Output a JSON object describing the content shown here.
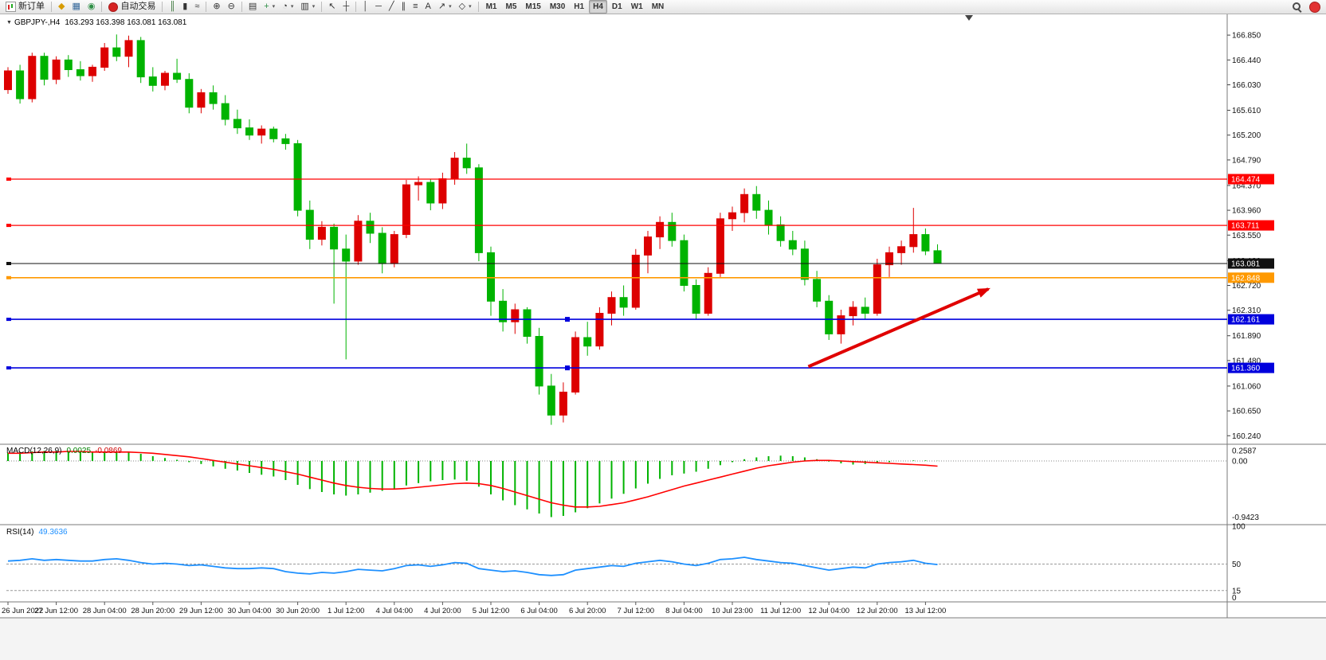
{
  "toolbar": {
    "items": [
      {
        "name": "new-order-button",
        "label": "新订单",
        "css_icon": "icon-neworder"
      },
      {
        "type": "sep"
      },
      {
        "name": "market-watch-button",
        "glyph": "◆",
        "color": "#d79b00"
      },
      {
        "name": "data-window-button",
        "glyph": "▦",
        "color": "#34679a"
      },
      {
        "name": "terminal-button",
        "glyph": "◉",
        "color": "#2f8f46"
      },
      {
        "type": "sep"
      },
      {
        "name": "auto-trading-button",
        "label": "自动交易",
        "css_icon": "icon-autotrade"
      },
      {
        "type": "sep"
      },
      {
        "name": "bar-chart-button",
        "glyph": "║",
        "color": "#2f6f2f"
      },
      {
        "name": "candlestick-chart-button",
        "glyph": "▮",
        "color": "#333333"
      },
      {
        "name": "line-chart-button",
        "glyph": "≈",
        "color": "#333333"
      },
      {
        "type": "sep"
      },
      {
        "name": "zoom-in-button",
        "glyph": "⊕",
        "color": "#333333"
      },
      {
        "name": "zoom-out-button",
        "glyph": "⊖",
        "color": "#333333"
      },
      {
        "type": "sep"
      },
      {
        "name": "tile-windows-button",
        "glyph": "▤",
        "color": "#333333"
      },
      {
        "name": "indicators-button",
        "glyph": "+",
        "color": "#2f8f46",
        "dropdown": true
      },
      {
        "name": "periods-button",
        "glyph": "◔",
        "color": "#333333",
        "dropdown": true
      },
      {
        "name": "templates-button",
        "glyph": "▥",
        "color": "#333333",
        "dropdown": true
      },
      {
        "type": "sep"
      },
      {
        "name": "cursor-button",
        "glyph": "↖",
        "color": "#333333"
      },
      {
        "name": "crosshair-button",
        "glyph": "┼",
        "color": "#333333"
      },
      {
        "type": "sep"
      },
      {
        "name": "vertical-line-button",
        "glyph": "│",
        "color": "#333333"
      },
      {
        "name": "horizontal-line-button",
        "glyph": "─",
        "color": "#333333"
      },
      {
        "name": "trendline-button",
        "glyph": "╱",
        "color": "#333333"
      },
      {
        "name": "channel-button",
        "glyph": "∥",
        "color": "#333333"
      },
      {
        "name": "fibonacci-button",
        "glyph": "≡",
        "color": "#333333"
      },
      {
        "name": "text-button",
        "glyph": "A",
        "color": "#333333"
      },
      {
        "name": "arrows-button",
        "glyph": "↗",
        "color": "#333333",
        "dropdown": true
      },
      {
        "name": "objects-button",
        "glyph": "◇",
        "color": "#333333",
        "dropdown": true
      },
      {
        "type": "sep"
      },
      {
        "type": "timeframes"
      },
      {
        "type": "spacer"
      },
      {
        "name": "search-button",
        "css_icon": "icon-magnifier"
      },
      {
        "name": "notification-button",
        "css_icon": "icon-badge"
      }
    ],
    "timeframes": {
      "options": [
        "M1",
        "M5",
        "M15",
        "M30",
        "H1",
        "H4",
        "D1",
        "W1",
        "MN"
      ],
      "active": "H4"
    }
  },
  "chart_data": [
    {
      "type": "candlestick",
      "title": "GBPJPY-,H4",
      "ohlc_display": "163.293 163.398 163.081 163.081",
      "up_color": "#dd0000",
      "down_color": "#00b300",
      "ylim": [
        160.1,
        167.14
      ],
      "y_ticks": [
        166.85,
        166.44,
        166.03,
        165.61,
        165.2,
        164.79,
        164.37,
        163.96,
        163.55,
        163.13,
        162.72,
        162.31,
        161.89,
        161.48,
        161.06,
        160.65,
        160.24
      ],
      "x_labels": [
        "26 Jun 2022",
        "27 Jun 12:00",
        "28 Jun 04:00",
        "28 Jun 20:00",
        "29 Jun 12:00",
        "30 Jun 04:00",
        "30 Jun 20:00",
        "1 Jul 12:00",
        "4 Jul 04:00",
        "4 Jul 20:00",
        "5 Jul 12:00",
        "6 Jul 04:00",
        "6 Jul 20:00",
        "7 Jul 12:00",
        "8 Jul 04:00",
        "10 Jul 23:00",
        "11 Jul 12:00",
        "12 Jul 04:00",
        "12 Jul 20:00",
        "13 Jul 12:00"
      ],
      "bars_per_label": 4,
      "candles": [
        [
          165.95,
          166.32,
          165.88,
          166.26
        ],
        [
          166.26,
          166.36,
          165.72,
          165.8
        ],
        [
          165.8,
          166.56,
          165.74,
          166.5
        ],
        [
          166.5,
          166.56,
          166.02,
          166.12
        ],
        [
          166.12,
          166.5,
          166.04,
          166.44
        ],
        [
          166.44,
          166.52,
          166.16,
          166.28
        ],
        [
          166.28,
          166.42,
          166.1,
          166.18
        ],
        [
          166.18,
          166.36,
          166.08,
          166.32
        ],
        [
          166.32,
          166.72,
          166.26,
          166.64
        ],
        [
          166.64,
          166.86,
          166.42,
          166.5
        ],
        [
          166.5,
          166.84,
          166.32,
          166.76
        ],
        [
          166.76,
          166.82,
          166.06,
          166.16
        ],
        [
          166.16,
          166.32,
          165.92,
          166.02
        ],
        [
          166.02,
          166.26,
          165.94,
          166.22
        ],
        [
          166.22,
          166.46,
          166.06,
          166.12
        ],
        [
          166.12,
          166.22,
          165.56,
          165.66
        ],
        [
          165.66,
          165.96,
          165.56,
          165.9
        ],
        [
          165.9,
          166.02,
          165.62,
          165.72
        ],
        [
          165.72,
          165.86,
          165.36,
          165.46
        ],
        [
          165.46,
          165.62,
          165.22,
          165.32
        ],
        [
          165.32,
          165.46,
          165.12,
          165.2
        ],
        [
          165.2,
          165.36,
          165.06,
          165.3
        ],
        [
          165.3,
          165.34,
          165.08,
          165.14
        ],
        [
          165.14,
          165.22,
          164.96,
          165.06
        ],
        [
          165.06,
          165.12,
          163.86,
          163.96
        ],
        [
          163.96,
          164.12,
          163.32,
          163.48
        ],
        [
          163.48,
          163.78,
          163.38,
          163.68
        ],
        [
          163.68,
          163.74,
          162.42,
          163.32
        ],
        [
          163.32,
          163.56,
          161.5,
          163.12
        ],
        [
          163.12,
          163.88,
          163.06,
          163.78
        ],
        [
          163.78,
          163.92,
          163.42,
          163.58
        ],
        [
          163.58,
          163.68,
          162.92,
          163.08
        ],
        [
          163.08,
          163.62,
          163.02,
          163.56
        ],
        [
          163.56,
          164.46,
          163.5,
          164.38
        ],
        [
          164.38,
          164.52,
          164.12,
          164.42
        ],
        [
          164.42,
          164.48,
          163.96,
          164.08
        ],
        [
          164.08,
          164.58,
          163.98,
          164.48
        ],
        [
          164.48,
          164.92,
          164.38,
          164.82
        ],
        [
          164.82,
          165.06,
          164.56,
          164.66
        ],
        [
          164.66,
          164.72,
          163.12,
          163.26
        ],
        [
          163.26,
          163.36,
          162.22,
          162.46
        ],
        [
          162.46,
          162.66,
          161.96,
          162.12
        ],
        [
          162.12,
          162.42,
          161.92,
          162.32
        ],
        [
          162.32,
          162.36,
          161.76,
          161.88
        ],
        [
          161.88,
          162.02,
          160.92,
          161.06
        ],
        [
          161.06,
          161.26,
          160.42,
          160.58
        ],
        [
          160.58,
          161.12,
          160.46,
          160.96
        ],
        [
          160.96,
          161.96,
          160.92,
          161.86
        ],
        [
          161.86,
          162.12,
          161.56,
          161.72
        ],
        [
          161.72,
          162.36,
          161.66,
          162.26
        ],
        [
          162.26,
          162.62,
          162.06,
          162.52
        ],
        [
          162.52,
          162.72,
          162.22,
          162.36
        ],
        [
          162.36,
          163.32,
          162.32,
          163.22
        ],
        [
          163.22,
          163.62,
          162.92,
          163.52
        ],
        [
          163.52,
          163.86,
          163.32,
          163.76
        ],
        [
          163.76,
          163.92,
          163.36,
          163.46
        ],
        [
          163.46,
          163.56,
          162.62,
          162.72
        ],
        [
          162.72,
          162.82,
          162.16,
          162.26
        ],
        [
          162.26,
          163.02,
          162.22,
          162.92
        ],
        [
          162.92,
          163.92,
          162.86,
          163.82
        ],
        [
          163.82,
          164.02,
          163.62,
          163.92
        ],
        [
          163.92,
          164.32,
          163.76,
          164.22
        ],
        [
          164.22,
          164.36,
          163.82,
          163.96
        ],
        [
          163.96,
          164.12,
          163.56,
          163.72
        ],
        [
          163.72,
          163.86,
          163.36,
          163.46
        ],
        [
          163.46,
          163.62,
          163.22,
          163.32
        ],
        [
          163.32,
          163.46,
          162.72,
          162.82
        ],
        [
          162.82,
          162.96,
          162.36,
          162.46
        ],
        [
          162.46,
          162.56,
          161.82,
          161.92
        ],
        [
          161.92,
          162.32,
          161.76,
          162.22
        ],
        [
          162.22,
          162.46,
          162.06,
          162.36
        ],
        [
          162.36,
          162.52,
          162.16,
          162.26
        ],
        [
          162.26,
          163.16,
          162.22,
          163.06
        ],
        [
          163.06,
          163.36,
          162.86,
          163.26
        ],
        [
          163.26,
          163.46,
          163.06,
          163.36
        ],
        [
          163.36,
          164.0,
          163.26,
          163.56
        ],
        [
          163.56,
          163.66,
          163.22,
          163.29
        ],
        [
          163.293,
          163.398,
          163.081,
          163.081
        ]
      ],
      "levels": [
        {
          "name": "resistance-line-1",
          "price": 164.474,
          "label": "164.474",
          "color": "#ff0000",
          "width": 1.3
        },
        {
          "name": "resistance-line-2",
          "price": 163.711,
          "label": "163.711",
          "color": "#ff0000",
          "width": 1.3
        },
        {
          "name": "current-price-line",
          "price": 163.081,
          "label": "163.081",
          "color": "#111111",
          "width": 1
        },
        {
          "name": "pivot-line",
          "price": 162.848,
          "label": "162.848",
          "color": "#ff9900",
          "width": 1.6
        },
        {
          "name": "support-line-1",
          "price": 162.161,
          "label": "162.161",
          "color": "#0000dd",
          "width": 1.6,
          "handles": true
        },
        {
          "name": "support-line-2",
          "price": 161.36,
          "label": "161.360",
          "color": "#0000dd",
          "width": 1.6,
          "handles": true
        }
      ],
      "trend_arrow": {
        "from_bar": 66.3,
        "from_price": 161.38,
        "to_bar": 81.2,
        "to_price": 162.66,
        "color": "#e00000"
      }
    },
    {
      "type": "bar",
      "title": "MACD(12,26,9)",
      "main_value": "0.0025",
      "signal_value": "-0.0869",
      "histogram_color": "#00b300",
      "signal_color": "#ff0000",
      "ylim": [
        -0.9423,
        0.2587
      ],
      "y_ticks": [
        {
          "v": 0.2587,
          "label": "0.2587"
        },
        {
          "v": 0,
          "label": "0.00"
        },
        {
          "v": -0.9423,
          "label": "-0.9423"
        }
      ],
      "histogram": [
        0.14,
        0.15,
        0.16,
        0.17,
        0.17,
        0.16,
        0.15,
        0.14,
        0.15,
        0.16,
        0.15,
        0.12,
        0.08,
        0.05,
        0.02,
        -0.02,
        -0.05,
        -0.09,
        -0.13,
        -0.16,
        -0.2,
        -0.23,
        -0.26,
        -0.32,
        -0.4,
        -0.47,
        -0.52,
        -0.56,
        -0.58,
        -0.56,
        -0.53,
        -0.5,
        -0.46,
        -0.41,
        -0.37,
        -0.34,
        -0.32,
        -0.31,
        -0.33,
        -0.43,
        -0.56,
        -0.66,
        -0.74,
        -0.81,
        -0.88,
        -0.94,
        -0.92,
        -0.86,
        -0.79,
        -0.71,
        -0.63,
        -0.55,
        -0.46,
        -0.38,
        -0.3,
        -0.24,
        -0.21,
        -0.18,
        -0.13,
        -0.07,
        -0.02,
        0.03,
        0.06,
        0.08,
        0.09,
        0.08,
        0.06,
        0.03,
        -0.01,
        -0.04,
        -0.06,
        -0.05,
        -0.04,
        -0.02,
        0.0,
        0.01,
        0.01,
        0.0025
      ],
      "signal": [
        0.13,
        0.13,
        0.14,
        0.15,
        0.15,
        0.16,
        0.16,
        0.15,
        0.15,
        0.15,
        0.15,
        0.14,
        0.13,
        0.11,
        0.09,
        0.07,
        0.04,
        0.01,
        -0.02,
        -0.05,
        -0.08,
        -0.11,
        -0.14,
        -0.18,
        -0.22,
        -0.27,
        -0.32,
        -0.37,
        -0.41,
        -0.44,
        -0.46,
        -0.47,
        -0.47,
        -0.46,
        -0.44,
        -0.42,
        -0.4,
        -0.38,
        -0.37,
        -0.38,
        -0.41,
        -0.46,
        -0.52,
        -0.58,
        -0.64,
        -0.7,
        -0.74,
        -0.77,
        -0.77,
        -0.76,
        -0.73,
        -0.7,
        -0.65,
        -0.6,
        -0.54,
        -0.48,
        -0.42,
        -0.37,
        -0.32,
        -0.27,
        -0.22,
        -0.17,
        -0.12,
        -0.08,
        -0.05,
        -0.02,
        0.0,
        0.01,
        0.01,
        0.0,
        -0.01,
        -0.02,
        -0.03,
        -0.04,
        -0.05,
        -0.06,
        -0.07,
        -0.0869
      ]
    },
    {
      "type": "line",
      "title": "RSI(14)",
      "value_display": "49.3636",
      "line_color": "#1e90ff",
      "ylim": [
        0,
        100
      ],
      "y_ticks": [
        {
          "v": 100,
          "label": "100"
        },
        {
          "v": 50,
          "label": "50"
        },
        {
          "v": 15,
          "label": "15"
        },
        {
          "v": 0,
          "label": "0"
        }
      ],
      "level_lines": [
        50,
        15
      ],
      "values": [
        54,
        55,
        57,
        55,
        56,
        55,
        54,
        54,
        56,
        57,
        55,
        52,
        50,
        51,
        50,
        48,
        49,
        47,
        45,
        44,
        44,
        45,
        44,
        40,
        38,
        37,
        39,
        38,
        40,
        43,
        42,
        41,
        44,
        48,
        49,
        47,
        49,
        52,
        51,
        44,
        42,
        40,
        41,
        39,
        36,
        35,
        36,
        42,
        44,
        46,
        48,
        47,
        51,
        53,
        55,
        53,
        50,
        48,
        51,
        56,
        57,
        59,
        56,
        54,
        52,
        51,
        48,
        45,
        42,
        44,
        46,
        45,
        50,
        52,
        53,
        55,
        51,
        49.3636
      ]
    }
  ]
}
